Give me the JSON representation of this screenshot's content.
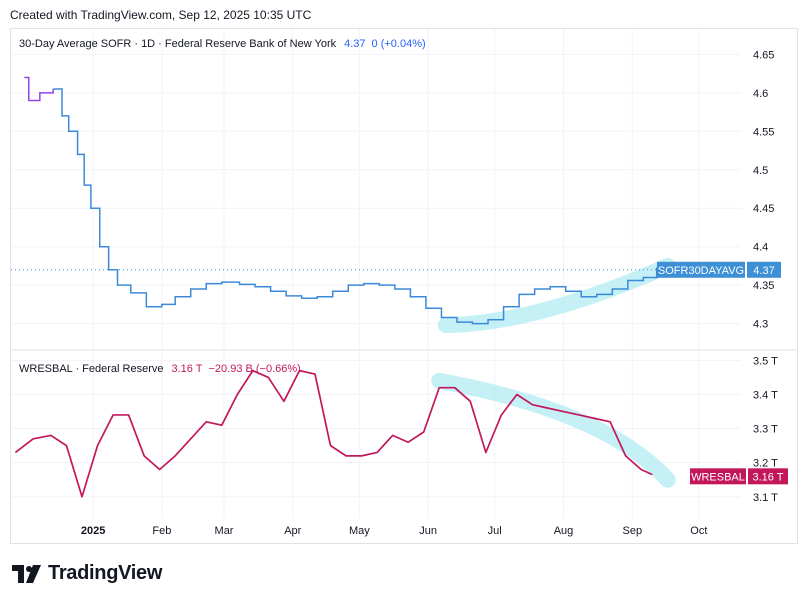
{
  "header": {
    "created": "Created with TradingView.com, Sep 12, 2025 10:35 UTC"
  },
  "logo": {
    "text": "TradingView",
    "icon": "tradingview-logo-icon"
  },
  "colors": {
    "sofr": "#2962ff",
    "sofr_line": "#3b8ad9",
    "sofr_early": "#8e44ef",
    "wresbal": "#c2185b",
    "highlight": "#b2ebf2",
    "label_sofr_bg": "#3d8fd6",
    "label_wres_bg": "#c2185b"
  },
  "chart_data": [
    {
      "type": "line",
      "title": "30-Day Average SOFR · 1D · Federal Reserve Bank of New York",
      "legend_value": "4.37",
      "legend_change": "0 (+0.04%)",
      "price_label": {
        "name": "SOFR30DAYAVG",
        "value": "4.37"
      },
      "y_ticks": [
        "4.65",
        "4.6",
        "4.55",
        "4.5",
        "4.45",
        "4.4",
        "4.35",
        "4.3"
      ],
      "ylim": [
        4.28,
        4.67
      ],
      "series": [
        {
          "values": [
            [
              "2024-12-01",
              4.62
            ],
            [
              "2024-12-03",
              4.59
            ],
            [
              "2024-12-08",
              4.6
            ],
            [
              "2024-12-14",
              4.605
            ],
            [
              "2024-12-18",
              4.57
            ],
            [
              "2024-12-21",
              4.55
            ],
            [
              "2024-12-25",
              4.52
            ],
            [
              "2024-12-28",
              4.48
            ],
            [
              "2024-12-31",
              4.45
            ],
            [
              "2025-01-04",
              4.4
            ],
            [
              "2025-01-08",
              4.37
            ],
            [
              "2025-01-12",
              4.35
            ],
            [
              "2025-01-18",
              4.34
            ],
            [
              "2025-01-25",
              4.322
            ],
            [
              "2025-02-01",
              4.325
            ],
            [
              "2025-02-07",
              4.335
            ],
            [
              "2025-02-14",
              4.345
            ],
            [
              "2025-02-21",
              4.352
            ],
            [
              "2025-02-28",
              4.354
            ],
            [
              "2025-03-08",
              4.351
            ],
            [
              "2025-03-15",
              4.348
            ],
            [
              "2025-03-22",
              4.342
            ],
            [
              "2025-03-29",
              4.336
            ],
            [
              "2025-04-05",
              4.333
            ],
            [
              "2025-04-12",
              4.335
            ],
            [
              "2025-04-19",
              4.342
            ],
            [
              "2025-04-26",
              4.35
            ],
            [
              "2025-05-03",
              4.352
            ],
            [
              "2025-05-10",
              4.35
            ],
            [
              "2025-05-17",
              4.345
            ],
            [
              "2025-05-24",
              4.335
            ],
            [
              "2025-05-31",
              4.32
            ],
            [
              "2025-06-07",
              4.308
            ],
            [
              "2025-06-14",
              4.302
            ],
            [
              "2025-06-21",
              4.3
            ],
            [
              "2025-06-28",
              4.305
            ],
            [
              "2025-07-05",
              4.322
            ],
            [
              "2025-07-12",
              4.338
            ],
            [
              "2025-07-19",
              4.345
            ],
            [
              "2025-07-26",
              4.348
            ],
            [
              "2025-08-02",
              4.342
            ],
            [
              "2025-08-09",
              4.335
            ],
            [
              "2025-08-16",
              4.338
            ],
            [
              "2025-08-23",
              4.345
            ],
            [
              "2025-08-30",
              4.356
            ],
            [
              "2025-09-06",
              4.36
            ],
            [
              "2025-09-12",
              4.373
            ]
          ]
        }
      ],
      "annotation": "highlight-jun-sep"
    },
    {
      "type": "line",
      "title": "WRESBAL · Federal Reserve",
      "legend_value": "3.16 T",
      "legend_change": "−20.93 B (−0.66%)",
      "price_label": {
        "name": "WRESBAL",
        "value": "3.16 T"
      },
      "y_ticks": [
        "3.5 T",
        "3.4 T",
        "3.3 T",
        "3.2 T",
        "3.1 T"
      ],
      "ylim": [
        3.07,
        3.51
      ],
      "series": [
        {
          "values": [
            [
              "2024-11-27",
              3.23
            ],
            [
              "2024-12-05",
              3.27
            ],
            [
              "2024-12-13",
              3.28
            ],
            [
              "2024-12-20",
              3.25
            ],
            [
              "2024-12-27",
              3.1
            ],
            [
              "2025-01-03",
              3.25
            ],
            [
              "2025-01-10",
              3.34
            ],
            [
              "2025-01-17",
              3.34
            ],
            [
              "2025-01-24",
              3.22
            ],
            [
              "2025-01-31",
              3.18
            ],
            [
              "2025-02-07",
              3.22
            ],
            [
              "2025-02-14",
              3.27
            ],
            [
              "2025-02-21",
              3.32
            ],
            [
              "2025-02-28",
              3.31
            ],
            [
              "2025-03-07",
              3.4
            ],
            [
              "2025-03-14",
              3.47
            ],
            [
              "2025-03-21",
              3.45
            ],
            [
              "2025-03-28",
              3.38
            ],
            [
              "2025-04-04",
              3.47
            ],
            [
              "2025-04-11",
              3.46
            ],
            [
              "2025-04-18",
              3.25
            ],
            [
              "2025-04-25",
              3.22
            ],
            [
              "2025-05-02",
              3.22
            ],
            [
              "2025-05-09",
              3.23
            ],
            [
              "2025-05-16",
              3.28
            ],
            [
              "2025-05-23",
              3.26
            ],
            [
              "2025-05-30",
              3.29
            ],
            [
              "2025-06-06",
              3.42
            ],
            [
              "2025-06-13",
              3.42
            ],
            [
              "2025-06-20",
              3.38
            ],
            [
              "2025-06-27",
              3.23
            ],
            [
              "2025-07-04",
              3.34
            ],
            [
              "2025-07-11",
              3.4
            ],
            [
              "2025-07-18",
              3.37
            ],
            [
              "2025-07-25",
              3.36
            ],
            [
              "2025-08-01",
              3.35
            ],
            [
              "2025-08-08",
              3.34
            ],
            [
              "2025-08-15",
              3.33
            ],
            [
              "2025-08-22",
              3.32
            ],
            [
              "2025-08-29",
              3.22
            ],
            [
              "2025-09-05",
              3.18
            ],
            [
              "2025-09-10",
              3.165
            ]
          ]
        }
      ],
      "annotation": "highlight-jun-sep"
    }
  ],
  "x_axis": {
    "ticks": [
      {
        "label": "2025",
        "date": "2025-01-01",
        "bold": true
      },
      {
        "label": "Feb",
        "date": "2025-02-01"
      },
      {
        "label": "Mar",
        "date": "2025-03-01"
      },
      {
        "label": "Apr",
        "date": "2025-04-01"
      },
      {
        "label": "May",
        "date": "2025-05-01"
      },
      {
        "label": "Jun",
        "date": "2025-06-01"
      },
      {
        "label": "Jul",
        "date": "2025-07-01"
      },
      {
        "label": "Aug",
        "date": "2025-08-01"
      },
      {
        "label": "Sep",
        "date": "2025-09-01"
      },
      {
        "label": "Oct",
        "date": "2025-10-01"
      }
    ],
    "range": [
      "2024-11-25",
      "2025-10-20"
    ]
  }
}
